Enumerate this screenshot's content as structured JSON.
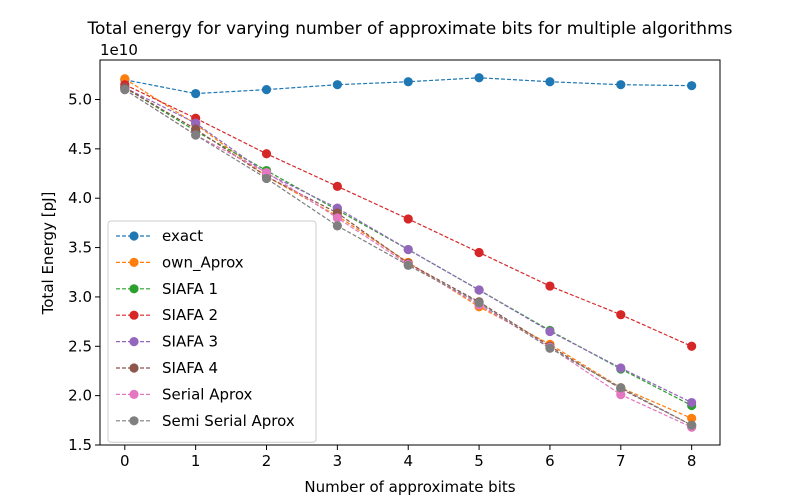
{
  "chart_data": {
    "type": "line",
    "title": "Total energy for varying number of approximate bits for multiple algorithms",
    "xlabel": "Number of approximate bits",
    "ylabel": "Total Energy [pJ]",
    "y_offset_label": "1e10",
    "y_scale_exponent": 10,
    "x": [
      0,
      1,
      2,
      3,
      4,
      5,
      6,
      7,
      8
    ],
    "xlim": [
      -0.35,
      8.4
    ],
    "ylim": [
      1.5,
      5.4
    ],
    "x_ticks": [
      0,
      1,
      2,
      3,
      4,
      5,
      6,
      7,
      8
    ],
    "y_ticks": [
      1.5,
      2.0,
      2.5,
      3.0,
      3.5,
      4.0,
      4.5,
      5.0
    ],
    "y_tick_labels": [
      "1.5",
      "2.0",
      "2.5",
      "3.0",
      "3.5",
      "4.0",
      "4.5",
      "5.0"
    ],
    "line_style": "dashed",
    "marker": "circle",
    "grid": false,
    "legend_position": "lower-left",
    "series": [
      {
        "name": "exact",
        "color": "#1f77b4",
        "values": [
          5.2,
          5.06,
          5.1,
          5.15,
          5.18,
          5.22,
          5.18,
          5.15,
          5.14
        ]
      },
      {
        "name": "own_Aprox",
        "color": "#ff7f0e",
        "values": [
          5.21,
          4.75,
          4.22,
          3.82,
          3.35,
          2.9,
          2.52,
          2.08,
          1.77
        ]
      },
      {
        "name": "SIAFA 1",
        "color": "#2ca02c",
        "values": [
          5.12,
          4.68,
          4.28,
          3.88,
          3.48,
          3.07,
          2.66,
          2.27,
          1.9
        ]
      },
      {
        "name": "SIAFA 2",
        "color": "#d62728",
        "values": [
          5.15,
          4.81,
          4.45,
          4.12,
          3.79,
          3.45,
          3.11,
          2.82,
          2.5
        ]
      },
      {
        "name": "SIAFA 3",
        "color": "#9467bd",
        "values": [
          5.12,
          4.76,
          4.25,
          3.9,
          3.48,
          3.07,
          2.65,
          2.28,
          1.93
        ]
      },
      {
        "name": "SIAFA 4",
        "color": "#8c564b",
        "values": [
          5.12,
          4.7,
          4.22,
          3.85,
          3.34,
          2.95,
          2.5,
          2.07,
          1.7
        ]
      },
      {
        "name": "Serial Aprox",
        "color": "#e377c2",
        "values": [
          5.1,
          4.64,
          4.26,
          3.8,
          3.33,
          2.92,
          2.49,
          2.01,
          1.68
        ]
      },
      {
        "name": "Semi Serial Aprox",
        "color": "#7f7f7f",
        "values": [
          5.1,
          4.64,
          4.2,
          3.72,
          3.32,
          2.94,
          2.48,
          2.08,
          1.7
        ]
      }
    ]
  }
}
